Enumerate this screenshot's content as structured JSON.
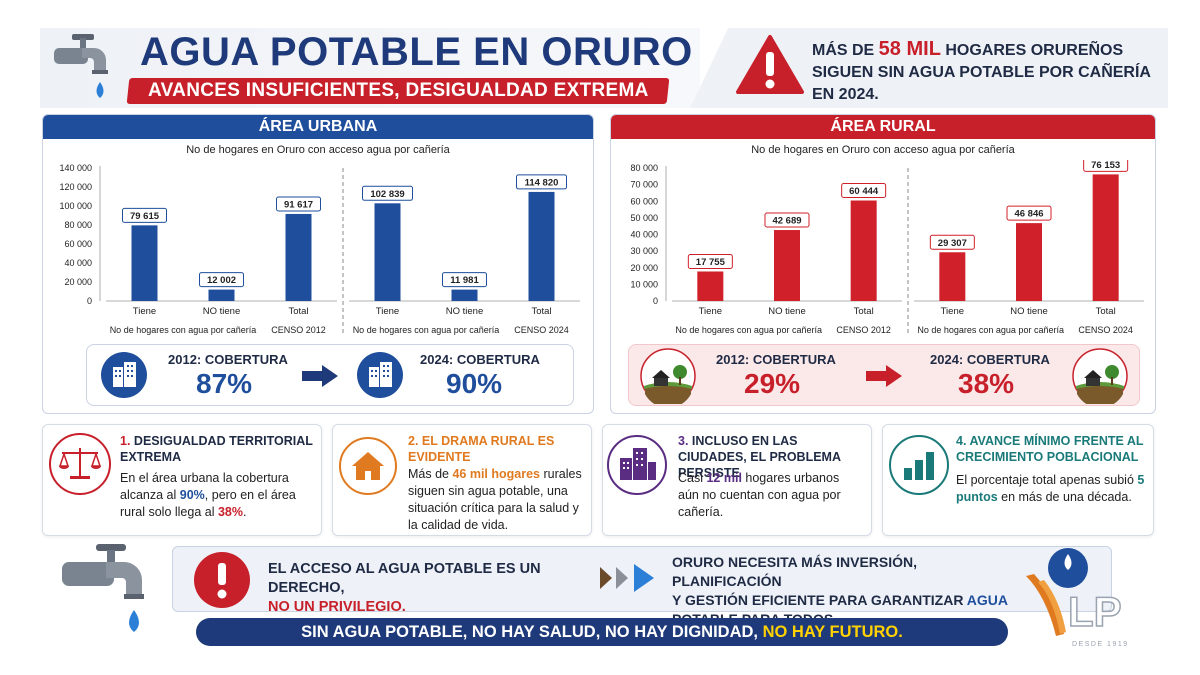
{
  "header": {
    "title": "AGUA POTABLE EN ORURO",
    "subtitle": "AVANCES INSUFICIENTES, DESIGUALDAD EXTREMA",
    "alert_pre": "MÁS DE ",
    "alert_num": "58 MIL",
    "alert_post": " HOGARES ORUREÑOS SIGUEN SIN AGUA POTABLE POR CAÑERÍA EN 2024."
  },
  "urban": {
    "heading": "ÁREA URBANA",
    "chart_title": "No de hogares en Oruro con acceso agua por cañería",
    "cov2012_label": "2012: COBERTURA",
    "cov2012_value": "87%",
    "cov2024_label": "2024: COBERTURA",
    "cov2024_value": "90%"
  },
  "rural": {
    "heading": "ÁREA RURAL",
    "chart_title": "No de hogares en Oruro con acceso agua por cañería",
    "cov2012_label": "2012: COBERTURA",
    "cov2012_value": "29%",
    "cov2024_label": "2024: COBERTURA",
    "cov2024_value": "38%"
  },
  "chart_data": [
    {
      "type": "bar",
      "title": "No de hogares en Oruro con acceso agua por cañería",
      "ylim": [
        0,
        140000
      ],
      "yticks": [
        "0",
        "20 000",
        "40 000",
        "60 000",
        "80 000",
        "100 000",
        "120 000",
        "140 000"
      ],
      "groups": [
        {
          "label": "No de hogares con agua por cañería",
          "census": "CENSO 2012",
          "categories": [
            "Tiene",
            "NO tiene",
            "Total"
          ],
          "values": [
            79615,
            12002,
            91617
          ],
          "labels": [
            "79 615",
            "12 002",
            "91 617"
          ]
        },
        {
          "label": "No de hogares con agua por cañería",
          "census": "CENSO 2024",
          "categories": [
            "Tiene",
            "NO tiene",
            "Total"
          ],
          "values": [
            102839,
            11981,
            114820
          ],
          "labels": [
            "102 839",
            "11 981",
            "114 820"
          ]
        }
      ],
      "color": "#1f4e9c"
    },
    {
      "type": "bar",
      "title": "No de hogares en Oruro con acceso agua por cañería",
      "ylim": [
        0,
        80000
      ],
      "yticks": [
        "0",
        "10 000",
        "20 000",
        "30 000",
        "40 000",
        "50 000",
        "60 000",
        "70 000",
        "80 000"
      ],
      "groups": [
        {
          "label": "No de hogares con agua por cañería",
          "census": "CENSO 2012",
          "categories": [
            "Tiene",
            "NO tiene",
            "Total"
          ],
          "values": [
            17755,
            42689,
            60444
          ],
          "labels": [
            "17 755",
            "42 689",
            "60 444"
          ]
        },
        {
          "label": "No de hogares con agua por cañería",
          "census": "CENSO 2024",
          "categories": [
            "Tiene",
            "NO tiene",
            "Total"
          ],
          "values": [
            29307,
            46846,
            76153
          ],
          "labels": [
            "29 307",
            "46 846",
            "76 153"
          ]
        }
      ],
      "color": "#d0202a"
    }
  ],
  "cards": [
    {
      "num": "1.",
      "title": "DESIGUALDAD TERRITORIAL EXTREMA",
      "color": "#c8202a",
      "b1": "En el área urbana la cobertura alcanza al ",
      "h1": "90%",
      "b2": ", pero en el área rural solo llega al ",
      "h2": "38%",
      "b3": "."
    },
    {
      "num": "2.",
      "title": "EL DRAMA RURAL ES EVIDENTE",
      "color": "#e07a20",
      "b1": "Más de ",
      "h1": "46 mil hogares",
      "b2": " rurales siguen sin agua potable, una situación crítica para la salud y la calidad de vida.",
      "h2": "",
      "b3": ""
    },
    {
      "num": "3.",
      "title": "INCLUSO EN LAS CIUDADES, EL PROBLEMA PERSISTE",
      "color": "#5a2d82",
      "b1": "Casi ",
      "h1": "12 mil",
      "b2": " hogares urbanos aún no cuentan con agua por cañería.",
      "h2": "",
      "b3": ""
    },
    {
      "num": "4.",
      "title": "AVANCE MÍNIMO FRENTE AL CRECIMIENTO POBLACIONAL",
      "color": "#1a7a7a",
      "b1": "El porcentaje total apenas subió ",
      "h1": "5 puntos",
      "b2": " en más de una década.",
      "h2": "",
      "b3": ""
    }
  ],
  "bottom": {
    "right_l1": "EL ACCESO AL AGUA POTABLE ES UN DERECHO,",
    "right_l2": "NO UN PRIVILEGIO.",
    "need_1": "ORURO NECESITA MÁS INVERSIÓN, PLANIFICACIÓN",
    "need_2a": "Y GESTIÓN EFICIENTE PARA GARANTIZAR ",
    "need_2b": "AGUA",
    "need_3": "POTABLE PARA TODOS.",
    "banner_a": "SIN AGUA POTABLE, NO HAY SALUD, NO HAY DIGNIDAD, ",
    "banner_b": "NO HAY FUTURO."
  },
  "logo": {
    "text": "LP",
    "since": "DESDE 1919"
  },
  "colors": {
    "blue": "#1f4e9c",
    "navy": "#1f3a7a",
    "red": "#c8202a"
  }
}
